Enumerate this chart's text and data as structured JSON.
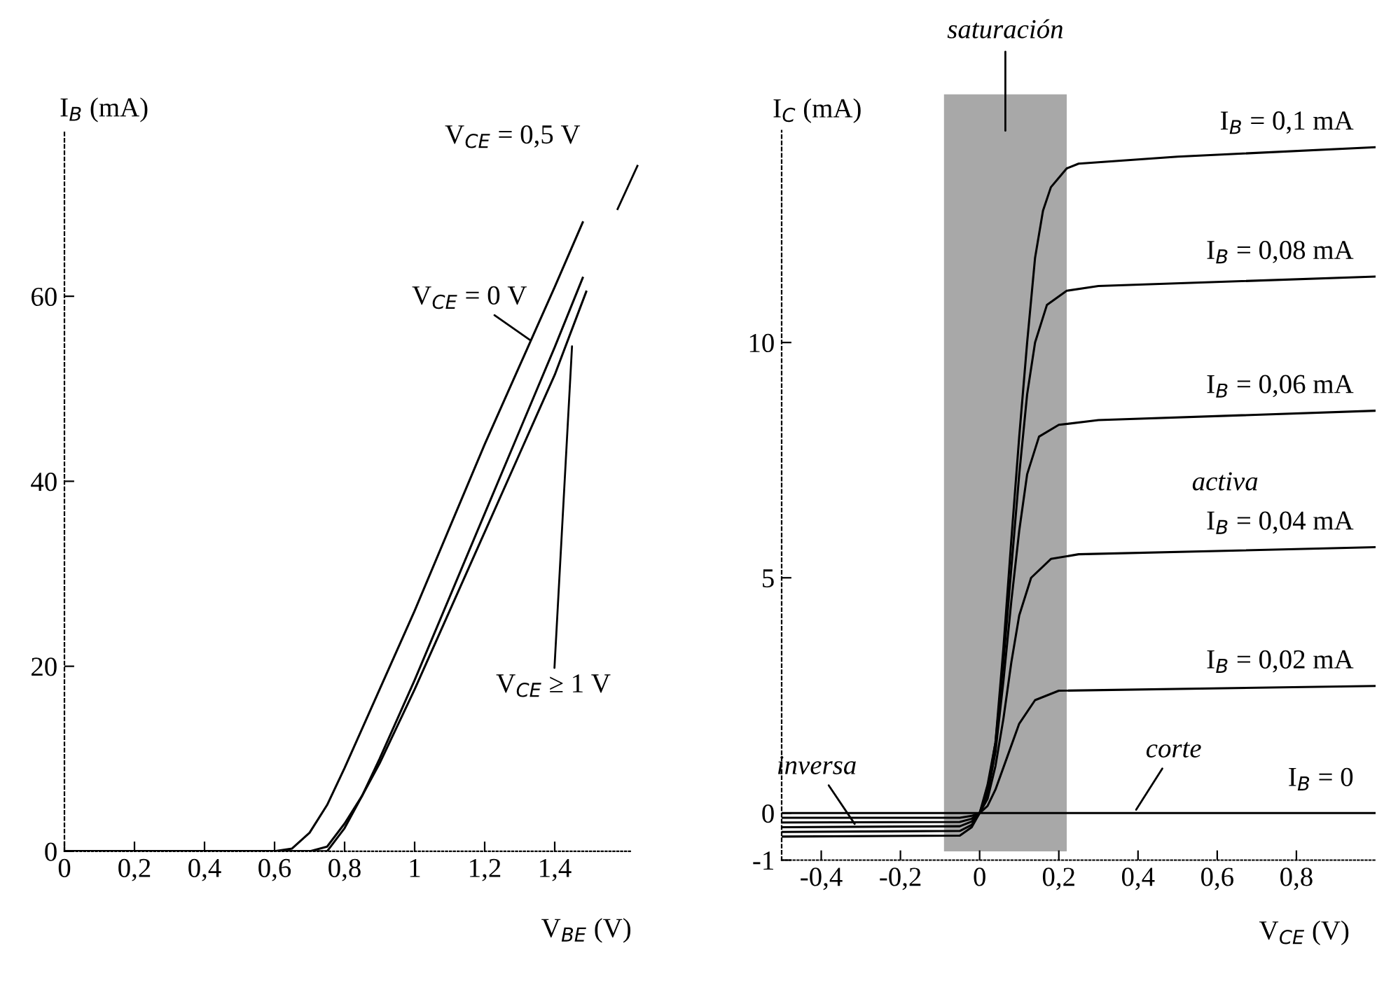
{
  "chart_data": [
    {
      "type": "line",
      "xlabel": "V$_{BE}$ (V)",
      "ylabel": "I$_{B}$ (mA)",
      "xlim": [
        0,
        1.62
      ],
      "ylim": [
        0,
        78
      ],
      "xticks": [
        0,
        {
          "value": 0.2,
          "label": "0,2"
        },
        {
          "value": 0.4,
          "label": "0,4"
        },
        {
          "value": 0.6,
          "label": "0,6"
        },
        {
          "value": 0.8,
          "label": "0,8"
        },
        1,
        {
          "value": 1.2,
          "label": "1,2"
        },
        {
          "value": 1.4,
          "label": "1,4"
        }
      ],
      "yticks": [
        0,
        20,
        40,
        60
      ],
      "grid": false,
      "legend": false,
      "series": [
        {
          "color": "#000000",
          "x": [
            0,
            0.6,
            0.65,
            0.7,
            0.75,
            0.8,
            0.9,
            1.0,
            1.1,
            1.2,
            1.3,
            1.4,
            1.48
          ],
          "values": [
            0,
            0,
            0.3,
            2,
            5,
            9,
            17.5,
            26,
            35,
            44,
            52.5,
            61,
            68
          ]
        },
        {
          "color": "#000000",
          "x": [
            0,
            0.7,
            0.75,
            0.8,
            0.85,
            0.9,
            1.0,
            1.1,
            1.2,
            1.3,
            1.4,
            1.48
          ],
          "values": [
            0,
            0,
            0.5,
            3,
            6,
            10,
            18.5,
            27.5,
            36.5,
            45.5,
            54.5,
            62
          ]
        },
        {
          "color": "#000000",
          "x": [
            0,
            0.75,
            0.8,
            0.9,
            1.0,
            1.1,
            1.2,
            1.3,
            1.4,
            1.49
          ],
          "values": [
            0,
            0,
            2.5,
            9.5,
            17.5,
            26,
            34.5,
            43,
            51.5,
            60.5
          ]
        }
      ],
      "annotations": [
        {
          "text": "V$_{CE}$ = 0 V",
          "x": 1.34,
          "y": 55
        },
        "V$_{CE}$ = 0,5 V",
        {
          "text": "V$_{CE}$ ≥ 1 V",
          "x": 1.45,
          "y": 55
        }
      ]
    },
    {
      "type": "line",
      "xlabel": "V$_{CE}$ (V)",
      "ylabel": "I$_{C}$ (mA)",
      "xlim": [
        -0.5,
        1.0
      ],
      "ylim": [
        -1,
        14.5
      ],
      "xticks": [
        {
          "value": -0.4,
          "label": "-0,4"
        },
        {
          "value": -0.2,
          "label": "-0,2"
        },
        0,
        {
          "value": 0.2,
          "label": "0,2"
        },
        {
          "value": 0.4,
          "label": "0,4"
        },
        {
          "value": 0.6,
          "label": "0,6"
        },
        {
          "value": 0.8,
          "label": "0,8"
        }
      ],
      "yticks": [
        -1,
        0,
        5,
        10
      ],
      "grid": false,
      "legend": false,
      "bands": [
        {
          "axis": "x",
          "from": -0.09,
          "to": 0.22,
          "label": "saturación",
          "color": "#a8a8a8"
        }
      ],
      "series": [
        {
          "name": "I$_{B}$ = 0,1 mA",
          "color": "#000000",
          "x": [
            -0.5,
            -0.05,
            -0.02,
            0,
            0.02,
            0.04,
            0.06,
            0.08,
            0.1,
            0.12,
            0.14,
            0.16,
            0.18,
            0.22,
            0.25,
            0.5,
            1.0
          ],
          "values": [
            -0.5,
            -0.48,
            -0.3,
            0,
            0.6,
            1.5,
            3.5,
            5.8,
            8,
            10,
            11.8,
            12.8,
            13.3,
            13.7,
            13.8,
            13.95,
            14.15
          ]
        },
        {
          "name": "I$_{B}$ = 0,08 mA",
          "color": "#000000",
          "x": [
            -0.5,
            -0.05,
            -0.02,
            0,
            0.02,
            0.04,
            0.06,
            0.08,
            0.1,
            0.12,
            0.14,
            0.17,
            0.22,
            0.3,
            1.0
          ],
          "values": [
            -0.4,
            -0.38,
            -0.25,
            0,
            0.5,
            1.5,
            3.2,
            5.2,
            7.2,
            8.9,
            10,
            10.8,
            11.1,
            11.2,
            11.4
          ]
        },
        {
          "name": "I$_{B}$ = 0,06 mA",
          "color": "#000000",
          "x": [
            -0.5,
            -0.05,
            -0.02,
            0,
            0.02,
            0.04,
            0.06,
            0.08,
            0.1,
            0.12,
            0.15,
            0.2,
            0.3,
            1.0
          ],
          "values": [
            -0.3,
            -0.28,
            -0.18,
            0,
            0.4,
            1.3,
            2.8,
            4.5,
            6,
            7.2,
            8,
            8.25,
            8.35,
            8.55
          ]
        },
        {
          "name": "I$_{B}$ = 0,04 mA",
          "color": "#000000",
          "x": [
            -0.5,
            -0.05,
            -0.02,
            0,
            0.02,
            0.04,
            0.06,
            0.08,
            0.1,
            0.13,
            0.18,
            0.25,
            1.0
          ],
          "values": [
            -0.2,
            -0.19,
            -0.12,
            0,
            0.3,
            1,
            2,
            3.2,
            4.2,
            5,
            5.4,
            5.5,
            5.65
          ]
        },
        {
          "name": "I$_{B}$ = 0,02 mA",
          "color": "#000000",
          "x": [
            -0.5,
            -0.05,
            -0.02,
            0,
            0.02,
            0.04,
            0.07,
            0.1,
            0.14,
            0.2,
            1.0
          ],
          "values": [
            -0.1,
            -0.1,
            -0.06,
            0,
            0.15,
            0.5,
            1.2,
            1.9,
            2.4,
            2.6,
            2.7
          ]
        },
        {
          "name": "I$_{B}$ = 0",
          "color": "#000000",
          "x": [
            -0.5,
            1.0
          ],
          "values": [
            0,
            0
          ]
        }
      ],
      "annotations": [
        "activa",
        {
          "text": "inversa",
          "x": -0.31,
          "y": -0.3
        },
        {
          "text": "corte",
          "x": 0.39,
          "y": 0
        }
      ]
    }
  ]
}
